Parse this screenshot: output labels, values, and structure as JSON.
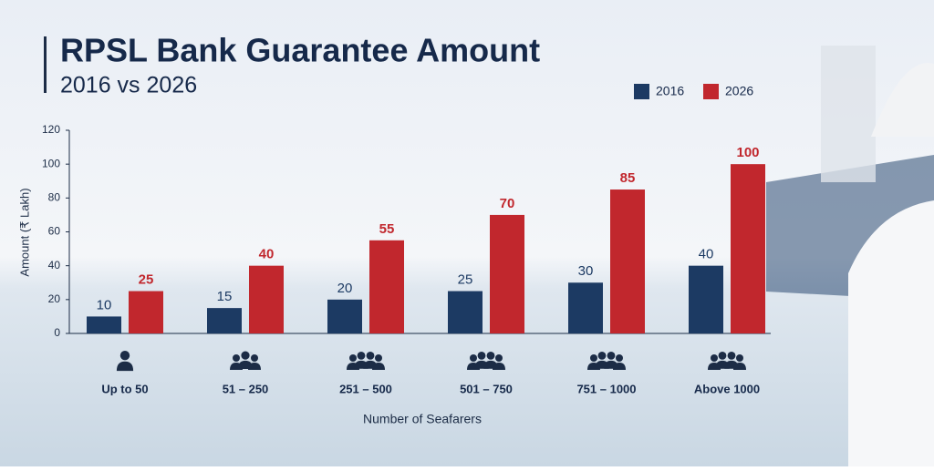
{
  "chart_data": {
    "type": "bar",
    "title": "RPSL Bank Guarantee Amount",
    "subtitle": "2016 vs 2026",
    "x_label": "Number of Seafarers",
    "y_label": "Amount (₹ Lakh)",
    "categories": [
      "Up to 50",
      "51 – 250",
      "251 – 500",
      "501 – 750",
      "751 – 1000",
      "Above 1000"
    ],
    "series": [
      {
        "name": "2016",
        "color": "#1c3a63",
        "values": [
          10,
          15,
          20,
          25,
          30,
          40
        ]
      },
      {
        "name": "2026",
        "color": "#c1272d",
        "values": [
          25,
          40,
          55,
          70,
          85,
          100
        ]
      }
    ],
    "ylim": [
      0,
      120
    ],
    "yticks": [
      0,
      20,
      40,
      60,
      80,
      100,
      120
    ],
    "grid": false,
    "legend": "top-right"
  }
}
